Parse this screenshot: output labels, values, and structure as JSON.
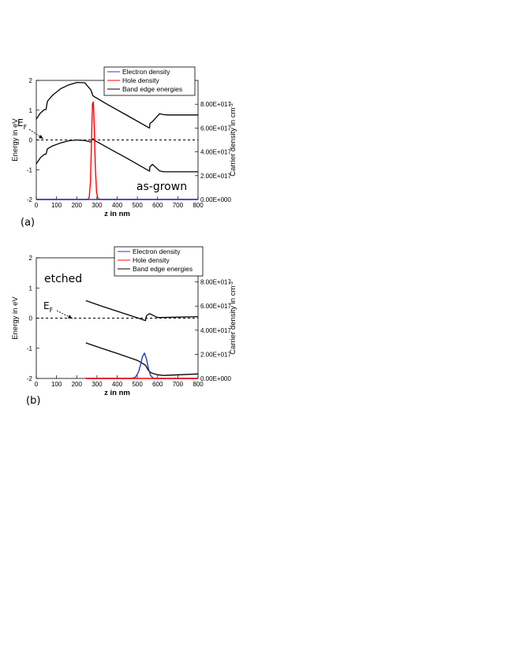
{
  "chart_data": [
    {
      "type": "line",
      "panel_label": "(a)",
      "annotation": "as-grown",
      "fermi_label": "E",
      "fermi_sub": "F",
      "xlabel": "z in nm",
      "ylabel": "Energy in eV",
      "y2label": "Carrier density in cm",
      "y2label_sup": "-3",
      "xlim": [
        0,
        800
      ],
      "ylim": [
        -2,
        2
      ],
      "y2lim": [
        0,
        1e+18
      ],
      "xticks": [
        "0",
        "100",
        "200",
        "300",
        "400",
        "500",
        "600",
        "700",
        "800"
      ],
      "yticks": [
        "-2",
        "-1",
        "0",
        "1",
        "2"
      ],
      "y2ticks": [
        "0.00E+000",
        "2.00E+017",
        "4.00E+017",
        "6.00E+017",
        "8.00E+017"
      ],
      "legend": [
        "Electron density",
        "Hole density",
        "Band edge energies"
      ],
      "legend_position": "top",
      "fermi_level": 0,
      "series": [
        {
          "name": "Band edge energies",
          "color": "#000000",
          "axis": "left",
          "x": [
            0,
            20,
            40,
            48,
            55,
            80,
            120,
            160,
            200,
            240,
            270,
            280,
            290,
            350,
            450,
            560,
            562,
            575,
            610,
            630,
            650,
            700,
            800
          ],
          "y": [
            0.7,
            0.9,
            1.02,
            1.02,
            1.3,
            1.5,
            1.72,
            1.85,
            1.93,
            1.92,
            1.68,
            1.48,
            1.44,
            1.2,
            0.82,
            0.4,
            0.55,
            0.62,
            0.88,
            0.85,
            0.84,
            0.84,
            0.84
          ]
        },
        {
          "name": "Band edge energies",
          "color": "#000000",
          "axis": "left",
          "x": [
            0,
            20,
            40,
            48,
            55,
            80,
            120,
            160,
            200,
            240,
            270,
            280,
            290,
            350,
            450,
            560,
            562,
            575,
            610,
            630,
            650,
            700,
            800
          ],
          "y": [
            -0.8,
            -0.6,
            -0.48,
            -0.48,
            -0.3,
            -0.2,
            -0.1,
            -0.03,
            0.0,
            -0.02,
            -0.07,
            0.04,
            -0.02,
            -0.25,
            -0.62,
            -1.05,
            -0.9,
            -0.82,
            -1.04,
            -1.07,
            -1.07,
            -1.07,
            -1.07
          ]
        },
        {
          "name": "Hole density",
          "color": "#ff0000",
          "axis": "right",
          "x": [
            0,
            240,
            255,
            262,
            268,
            274,
            278,
            282,
            286,
            292,
            298,
            305,
            320,
            800
          ],
          "y": [
            0,
            0,
            0,
            2e+16,
            1.5e+17,
            5.5e+17,
            8e+17,
            8.2e+17,
            6.5e+17,
            2.8e+17,
            6e+16,
            5000000000000000.0,
            0,
            0
          ]
        },
        {
          "name": "Electron density",
          "color": "#1f3fbf",
          "axis": "right",
          "x": [
            0,
            800
          ],
          "y": [
            0,
            0
          ]
        }
      ]
    },
    {
      "type": "line",
      "panel_label": "(b)",
      "annotation": "etched",
      "fermi_label": "E",
      "fermi_sub": "F",
      "xlabel": "z in nm",
      "ylabel": "Energy in eV",
      "y2label": "Carrier density in cm",
      "y2label_sup": "-3",
      "xlim": [
        0,
        800
      ],
      "ylim": [
        -2,
        2
      ],
      "y2lim": [
        0,
        1e+18
      ],
      "xticks": [
        "0",
        "100",
        "200",
        "300",
        "400",
        "500",
        "600",
        "700",
        "800"
      ],
      "yticks": [
        "-2",
        "-1",
        "0",
        "1",
        "2"
      ],
      "y2ticks": [
        "0.00E+000",
        "2.00E+017",
        "4.00E+017",
        "6.00E+017",
        "8.00E+017"
      ],
      "legend": [
        "Electron density",
        "Hole density",
        "Band edge energies"
      ],
      "legend_position": "top",
      "fermi_level": 0,
      "series": [
        {
          "name": "Band edge energies",
          "color": "#000000",
          "axis": "left",
          "x": [
            245,
            300,
            400,
            500,
            540,
            545,
            560,
            600,
            620,
            800
          ],
          "y": [
            0.58,
            0.45,
            0.23,
            0.01,
            -0.08,
            0.08,
            0.15,
            0.02,
            0.02,
            0.05
          ]
        },
        {
          "name": "Band edge energies",
          "color": "#000000",
          "axis": "left",
          "x": [
            245,
            300,
            400,
            500,
            530,
            540,
            555,
            570,
            600,
            630,
            800
          ],
          "y": [
            -0.82,
            -0.95,
            -1.17,
            -1.4,
            -1.52,
            -1.56,
            -1.74,
            -1.82,
            -1.88,
            -1.9,
            -1.85
          ]
        },
        {
          "name": "Electron density",
          "color": "#1f3fbf",
          "axis": "right",
          "x": [
            245,
            470,
            490,
            505,
            515,
            525,
            535,
            545,
            555,
            565,
            580,
            800
          ],
          "y": [
            0,
            0,
            1e+16,
            5e+16,
            1.1e+17,
            1.8e+17,
            2.1e+17,
            1.6e+17,
            8e+16,
            2.5e+16,
            0,
            0
          ]
        },
        {
          "name": "Hole density",
          "color": "#ff0000",
          "axis": "right",
          "x": [
            245,
            800
          ],
          "y": [
            0,
            0
          ]
        }
      ]
    }
  ]
}
